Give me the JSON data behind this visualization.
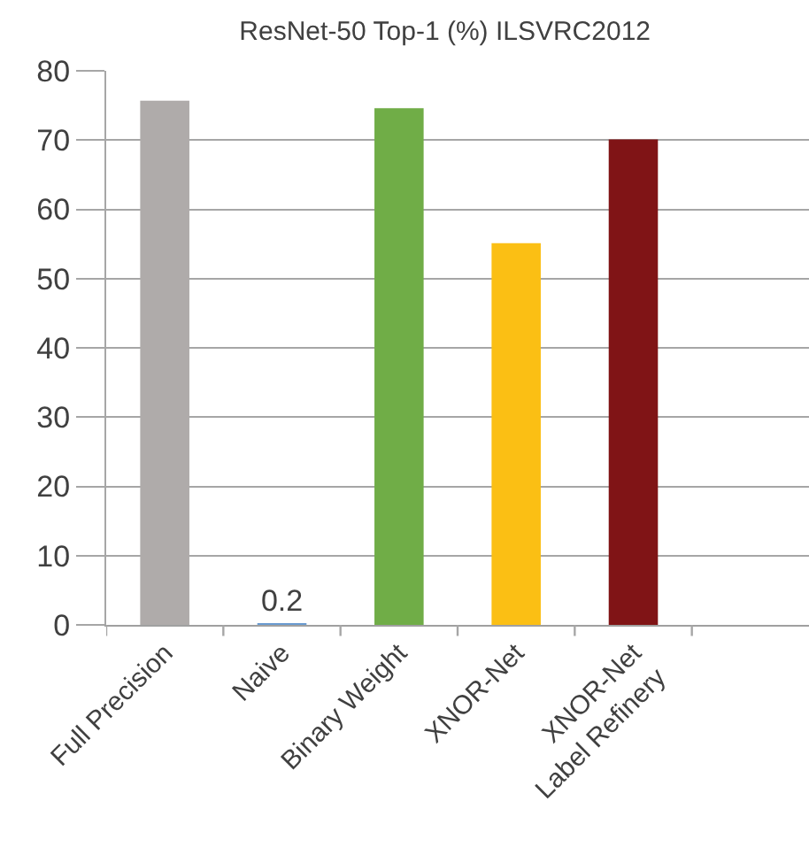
{
  "chart_data": {
    "type": "bar",
    "title": "ResNet-50 Top-1 (%) ILSVRC2012",
    "categories": [
      "Full Precision",
      "Naive",
      "Binary Weight",
      "XNOR-Net",
      "XNOR-Net\nLabel Refinery",
      null
    ],
    "values": [
      75.7,
      0.2,
      74.6,
      55.1,
      70.1,
      null
    ],
    "colors": [
      "#afabaa",
      "#6a9bd1",
      "#70ad47",
      "#fbbf14",
      "#801416",
      "#000000"
    ],
    "value_labels": [
      null,
      "0.2",
      null,
      null,
      null,
      null
    ],
    "ylim": [
      0,
      80
    ],
    "yticks": [
      0,
      10,
      20,
      30,
      40,
      50,
      60,
      70,
      80
    ],
    "grid": "y"
  }
}
